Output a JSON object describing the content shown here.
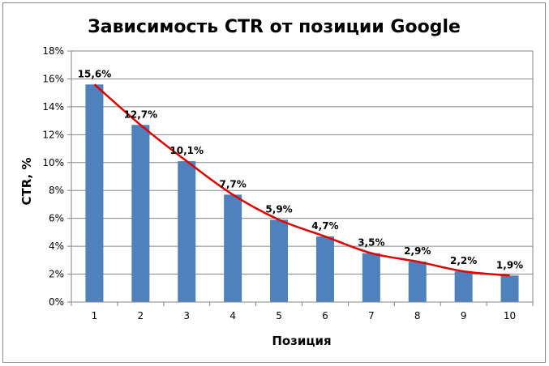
{
  "chart_data": {
    "type": "bar",
    "title": "Зависимость CTR от позиции Google",
    "xlabel": "Позиция",
    "ylabel": "CTR, %",
    "categories": [
      "1",
      "2",
      "3",
      "4",
      "5",
      "6",
      "7",
      "8",
      "9",
      "10"
    ],
    "values": [
      15.6,
      12.7,
      10.1,
      7.7,
      5.9,
      4.7,
      3.5,
      2.9,
      2.2,
      1.9
    ],
    "data_labels": [
      "15,6%",
      "12,7%",
      "10,1%",
      "7,7%",
      "5,9%",
      "4,7%",
      "3,5%",
      "2,9%",
      "2,2%",
      "1,9%"
    ],
    "ylim": [
      0,
      18
    ],
    "yticks": [
      0,
      2,
      4,
      6,
      8,
      10,
      12,
      14,
      16,
      18
    ],
    "ytick_labels": [
      "0%",
      "2%",
      "4%",
      "6%",
      "8%",
      "10%",
      "12%",
      "14%",
      "16%",
      "18%"
    ],
    "grid": true,
    "legend": "none",
    "trendline": {
      "type": "smooth",
      "color": "#e00000"
    },
    "colors": {
      "bar": "#4f81bd",
      "grid": "#868686",
      "axis": "#868686"
    }
  }
}
